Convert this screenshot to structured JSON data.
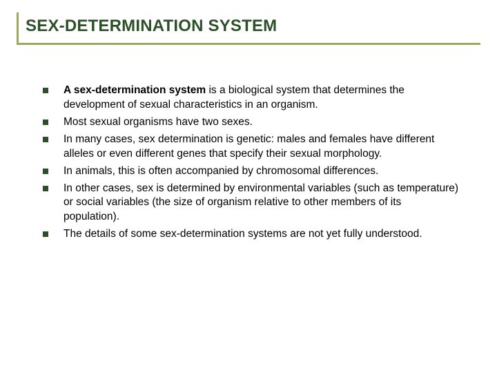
{
  "slide": {
    "title": "SEX-DETERMINATION SYSTEM",
    "title_color": "#2c5128",
    "title_fontsize": 24,
    "rule_color": "#9aa95e",
    "bullet_color": "#2b4f27",
    "bullet_size": 8,
    "body_fontsize": 15.5,
    "background_color": "#ffffff",
    "items": [
      {
        "bold_lead": "A sex-determination system",
        "rest": " is a biological system that determines the development of sexual characteristics in an organism."
      },
      {
        "bold_lead": "",
        "rest": "Most sexual organisms have two sexes."
      },
      {
        "bold_lead": "",
        "rest": "In many cases, sex determination is genetic: males and females have different alleles or even different genes that specify their sexual morphology."
      },
      {
        "bold_lead": "",
        "rest": "In animals, this is often accompanied by chromosomal differences."
      },
      {
        "bold_lead": "",
        "rest": "In other cases, sex is determined by environmental variables (such as temperature) or social variables (the size of organism relative to other members of its population)."
      },
      {
        "bold_lead": "",
        "rest": "The details of some sex-determination systems are not yet fully understood."
      }
    ]
  }
}
